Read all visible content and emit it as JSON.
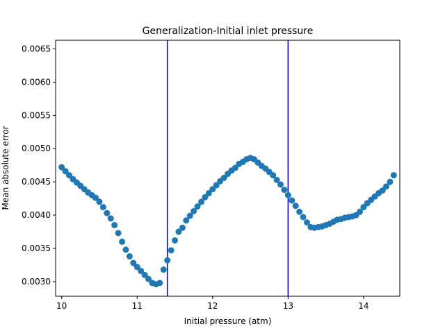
{
  "chart_data": {
    "type": "scatter",
    "title": "Generalization-Initial inlet pressure",
    "xlabel": "Initial pressure (atm)",
    "ylabel": "Mean absolute error",
    "xlim": [
      9.92,
      14.48
    ],
    "ylim": [
      0.00278,
      0.00663
    ],
    "xticks": [
      10,
      11,
      12,
      13,
      14
    ],
    "xtick_labels": [
      "10",
      "11",
      "12",
      "13",
      "14"
    ],
    "yticks": [
      0.003,
      0.0035,
      0.004,
      0.0045,
      0.005,
      0.0055,
      0.006,
      0.0065
    ],
    "ytick_labels": [
      "0.0030",
      "0.0035",
      "0.0040",
      "0.0045",
      "0.0050",
      "0.0055",
      "0.0060",
      "0.0065"
    ],
    "grid": false,
    "marker_color": "#1f77b4",
    "vline_color": "#0000cc",
    "vlines": [
      11.4,
      13.0
    ],
    "x": [
      10.0,
      10.05,
      10.1,
      10.15,
      10.2,
      10.25,
      10.3,
      10.35,
      10.4,
      10.45,
      10.5,
      10.55,
      10.6,
      10.65,
      10.7,
      10.75,
      10.8,
      10.85,
      10.9,
      10.95,
      11.0,
      11.05,
      11.1,
      11.15,
      11.2,
      11.25,
      11.3,
      11.35,
      11.4,
      11.45,
      11.5,
      11.55,
      11.6,
      11.65,
      11.7,
      11.75,
      11.8,
      11.85,
      11.9,
      11.95,
      12.0,
      12.05,
      12.1,
      12.15,
      12.2,
      12.25,
      12.3,
      12.35,
      12.4,
      12.45,
      12.5,
      12.55,
      12.6,
      12.65,
      12.7,
      12.75,
      12.8,
      12.85,
      12.9,
      12.95,
      13.0,
      13.05,
      13.1,
      13.15,
      13.2,
      13.25,
      13.3,
      13.35,
      13.4,
      13.45,
      13.5,
      13.55,
      13.6,
      13.65,
      13.7,
      13.75,
      13.8,
      13.85,
      13.9,
      13.95,
      14.0,
      14.05,
      14.1,
      14.15,
      14.2,
      14.25,
      14.3,
      14.35,
      14.4
    ],
    "y": [
      0.00472,
      0.00466,
      0.0046,
      0.00454,
      0.00449,
      0.00444,
      0.00439,
      0.00434,
      0.0043,
      0.00426,
      0.0042,
      0.00412,
      0.00403,
      0.00395,
      0.00385,
      0.00373,
      0.0036,
      0.00348,
      0.00338,
      0.00328,
      0.00322,
      0.00316,
      0.0031,
      0.00304,
      0.00298,
      0.00296,
      0.00298,
      0.00318,
      0.00332,
      0.00347,
      0.00362,
      0.00375,
      0.00381,
      0.00392,
      0.00399,
      0.00406,
      0.00413,
      0.0042,
      0.00427,
      0.00433,
      0.00439,
      0.00445,
      0.00451,
      0.00456,
      0.00462,
      0.00467,
      0.00471,
      0.00477,
      0.0048,
      0.00484,
      0.00486,
      0.00484,
      0.00479,
      0.00474,
      0.0047,
      0.00465,
      0.0046,
      0.00453,
      0.00446,
      0.00438,
      0.0043,
      0.00422,
      0.00414,
      0.00405,
      0.00397,
      0.00389,
      0.00382,
      0.00381,
      0.00382,
      0.00383,
      0.00385,
      0.00387,
      0.0039,
      0.00393,
      0.00394,
      0.00396,
      0.00397,
      0.00398,
      0.004,
      0.00405,
      0.00412,
      0.00418,
      0.00423,
      0.00428,
      0.00433,
      0.00437,
      0.00443,
      0.0045,
      0.0046
    ]
  }
}
